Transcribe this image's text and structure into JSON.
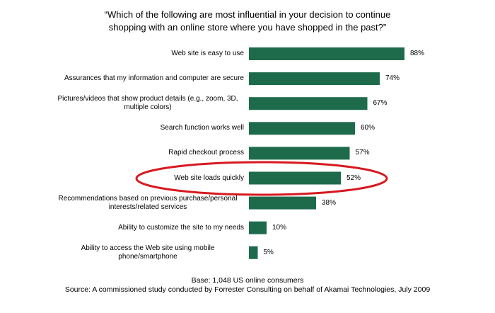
{
  "chart_data": {
    "type": "bar",
    "title": "“Which of the following are most influential in your decision to continue shopping with an online store where you have shopped in the past?”",
    "categories": [
      "Web site is easy to use",
      "Assurances that my information and computer are secure",
      "Pictures/videos that show product details (e.g., zoom, 3D, multiple colors)",
      "Search function works well",
      "Rapid checkout process",
      "Web site loads quickly",
      "Recommendations based on previous purchase/personal interests/related services",
      "Ability to customize the site to my needs",
      "Ability to access the Web site using mobile phone/smartphone"
    ],
    "values": [
      88,
      74,
      67,
      60,
      57,
      52,
      38,
      10,
      5
    ],
    "value_labels": [
      "88%",
      "74%",
      "67%",
      "60%",
      "57%",
      "52%",
      "38%",
      "10%",
      "5%"
    ],
    "color": "#1e6b4c",
    "base_note": "Base: 1,048 US online consumers",
    "source_note": "Source: A commissioned study conducted by Forrester Consulting on behalf of Akamai Technologies, July 2009"
  }
}
